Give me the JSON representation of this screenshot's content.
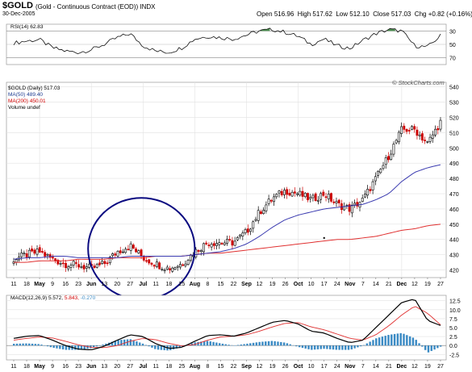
{
  "header": {
    "symbol": "$GOLD",
    "name": "(Gold - Continuous Contract (EOD))",
    "exchange": "INDX",
    "date": "30-Dec-2005",
    "open_label": "Open",
    "open": "516.96",
    "high_label": "High",
    "high": "517.62",
    "low_label": "Low",
    "low": "512.10",
    "close_label": "Close",
    "close": "517.03",
    "chg_label": "Chg",
    "chg": "+0.82 (+0.16%)",
    "watermark": "© StockCharts.com"
  },
  "legend": {
    "price": "$GOLD (Daily) 517.03",
    "ma50": "MA(50) 489.40",
    "ma200": "MA(200) 450.01",
    "volume": "Volume undef"
  },
  "rsi": {
    "label": "RSI(14) 62.83",
    "levels": [
      "70",
      "50",
      "30"
    ]
  },
  "macd": {
    "label_main": "MACD(12,26,9) 5.572,",
    "label_signal": "5.843,",
    "label_hist": "-0.270",
    "levels": [
      "12.5",
      "10.0",
      "7.5",
      "5.0",
      "2.5",
      "0.0",
      "-2.5"
    ]
  },
  "xaxis": {
    "ticks": [
      "11",
      "18",
      "May",
      "9",
      "16",
      "23",
      "Jun",
      "13",
      "20",
      "27",
      "Jul",
      "11",
      "18",
      "25",
      "Aug",
      "8",
      "15",
      "22",
      "Sep",
      "12",
      "19",
      "26",
      "Oct",
      "10",
      "17",
      "24",
      "Nov",
      "7",
      "14",
      "21",
      "Dec",
      "12",
      "19",
      "27"
    ],
    "month_ticks": [
      "May",
      "Jun",
      "Jul",
      "Aug",
      "Sep",
      "Oct",
      "Nov",
      "Dec"
    ]
  },
  "colors": {
    "up": "#000000",
    "down": "#cc0000",
    "ma50": "#3b3bb0",
    "ma200": "#e03030",
    "annotation": "#0a0a80",
    "hist": "#3a8ac4",
    "rsi_fill": "#2e7d32"
  },
  "chart_data": [
    {
      "type": "candlestick",
      "title": "$GOLD (Daily)",
      "x": [
        "11",
        "18",
        "May",
        "9",
        "16",
        "23",
        "Jun",
        "13",
        "20",
        "27",
        "Jul",
        "11",
        "18",
        "25",
        "Aug",
        "8",
        "15",
        "22",
        "Sep",
        "12",
        "19",
        "26",
        "Oct",
        "10",
        "17",
        "24",
        "Nov",
        "7",
        "14",
        "21",
        "Dec",
        "12",
        "19",
        "27"
      ],
      "close_by_tick": [
        427,
        430,
        432,
        427,
        424,
        423,
        421,
        424,
        432,
        436,
        428,
        424,
        421,
        424,
        432,
        438,
        438,
        438,
        445,
        458,
        467,
        472,
        470,
        466,
        470,
        463,
        460,
        466,
        480,
        495,
        512,
        512,
        503,
        517
      ],
      "ma50_by_tick": [
        427,
        428,
        428,
        429,
        429,
        428,
        428,
        428,
        428,
        429,
        429,
        429,
        429,
        429,
        430,
        431,
        432,
        434,
        437,
        442,
        448,
        453,
        456,
        458,
        460,
        461,
        462,
        463,
        466,
        470,
        478,
        484,
        487,
        489
      ],
      "ma200_by_tick": [
        425,
        425,
        426,
        426,
        426,
        427,
        427,
        427,
        428,
        428,
        428,
        429,
        429,
        429,
        430,
        431,
        431,
        432,
        433,
        434,
        435,
        436,
        437,
        438,
        439,
        440,
        440,
        441,
        442,
        444,
        446,
        447,
        449,
        450
      ],
      "ylim": [
        415,
        543
      ],
      "yticks": [
        420,
        430,
        440,
        450,
        460,
        470,
        480,
        490,
        500,
        510,
        520,
        530,
        540
      ],
      "annotation": "ellipse around Jun–Aug consolidation"
    },
    {
      "type": "line",
      "title": "RSI(14)",
      "x": [
        "11",
        "18",
        "May",
        "9",
        "16",
        "23",
        "Jun",
        "13",
        "20",
        "27",
        "Jul",
        "11",
        "18",
        "25",
        "Aug",
        "8",
        "15",
        "22",
        "Sep",
        "12",
        "19",
        "26",
        "Oct",
        "10",
        "17",
        "24",
        "Nov",
        "7",
        "14",
        "21",
        "Dec",
        "12",
        "19",
        "27"
      ],
      "values": [
        52,
        55,
        57,
        45,
        40,
        38,
        42,
        50,
        60,
        66,
        48,
        40,
        38,
        45,
        58,
        62,
        60,
        58,
        64,
        70,
        72,
        68,
        62,
        50,
        58,
        48,
        44,
        56,
        66,
        72,
        70,
        48,
        46,
        63
      ],
      "ylim": [
        20,
        80
      ],
      "levels": [
        30,
        50,
        70
      ]
    },
    {
      "type": "line",
      "title": "MACD(12,26,9)",
      "x": [
        "11",
        "18",
        "May",
        "9",
        "16",
        "23",
        "Jun",
        "13",
        "20",
        "27",
        "Jul",
        "11",
        "18",
        "25",
        "Aug",
        "8",
        "15",
        "22",
        "Sep",
        "12",
        "19",
        "26",
        "Oct",
        "10",
        "17",
        "24",
        "Nov",
        "7",
        "14",
        "21",
        "Dec",
        "12",
        "19",
        "27"
      ],
      "series": [
        {
          "name": "MACD",
          "values": [
            2.0,
            2.6,
            2.8,
            1.5,
            0.0,
            -1.0,
            -1.2,
            -0.2,
            1.5,
            3.0,
            2.5,
            0.5,
            -0.8,
            -0.5,
            1.2,
            2.8,
            3.0,
            2.6,
            3.5,
            5.0,
            6.5,
            7.0,
            6.0,
            4.0,
            3.5,
            2.0,
            0.8,
            1.5,
            5.0,
            8.5,
            12.0,
            13.0,
            7.0,
            5.6
          ]
        },
        {
          "name": "Signal",
          "values": [
            1.5,
            2.0,
            2.4,
            2.1,
            1.2,
            0.2,
            -0.5,
            -0.6,
            0.0,
            1.2,
            2.0,
            1.6,
            0.6,
            -0.1,
            0.3,
            1.5,
            2.4,
            2.6,
            3.0,
            4.0,
            5.2,
            6.2,
            6.4,
            5.2,
            4.4,
            3.2,
            2.0,
            1.5,
            3.0,
            5.5,
            8.5,
            11.0,
            9.0,
            5.8
          ]
        }
      ],
      "histogram": [
        0.5,
        0.6,
        0.4,
        -0.6,
        -1.2,
        -1.2,
        -0.7,
        0.4,
        1.5,
        1.8,
        0.5,
        -1.1,
        -1.4,
        -0.4,
        0.9,
        1.3,
        0.6,
        0.0,
        0.5,
        1.0,
        1.3,
        0.8,
        -0.4,
        -1.2,
        -0.9,
        -1.2,
        -1.2,
        0.0,
        2.0,
        3.0,
        3.5,
        2.0,
        -2.0,
        -0.3
      ],
      "ylim": [
        -4,
        14
      ],
      "levels": [
        12.5,
        10.0,
        7.5,
        5.0,
        2.5,
        0.0,
        -2.5
      ]
    }
  ]
}
